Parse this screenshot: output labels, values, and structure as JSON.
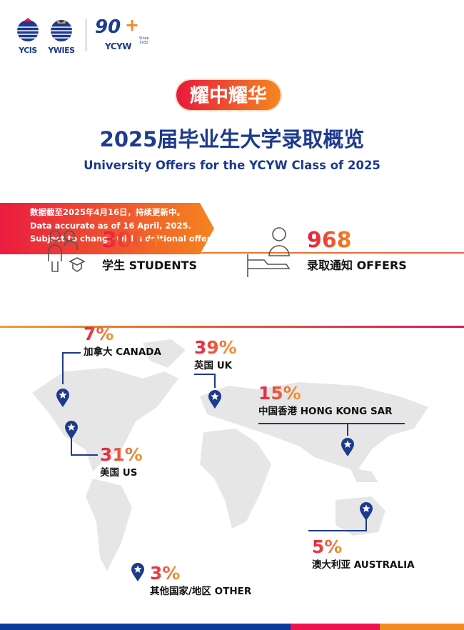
{
  "logos": {
    "ycis": "YCIS",
    "ywies": "YWIES",
    "ycyw": "YCYW",
    "ninety": "90",
    "since": "Since 1932"
  },
  "badge": "耀中耀华",
  "title": "2025届毕业生大学录取概览",
  "subtitle": "University Offers for the YCYW Class of 2025",
  "notice": [
    "数据截至2025年4月16日，持续更新中。",
    "Data accurate as of 16 April, 2025.",
    "Subject to change with additional offers."
  ],
  "stats": [
    {
      "value": "300+",
      "label": "学生 STUDENTS",
      "icon": "students-graduation-icon"
    },
    {
      "value": "968",
      "label": "录取通知 OFFERS",
      "icon": "person-offer-icon"
    }
  ],
  "regions": [
    {
      "pct": "7%",
      "label": "加拿大 CANADA"
    },
    {
      "pct": "39%",
      "label": "英国 UK"
    },
    {
      "pct": "15%",
      "label": "中国香港 HONG KONG SAR"
    },
    {
      "pct": "31%",
      "label": "美国 US"
    },
    {
      "pct": "5%",
      "label": "澳大利亚 AUSTRALIA"
    },
    {
      "pct": "3%",
      "label": "其他国家/地区 OTHER"
    }
  ],
  "colors": {
    "blue": "#1c3a8e",
    "red": "#e8193c",
    "orange": "#f5871f",
    "map": "#e6e6e6"
  }
}
